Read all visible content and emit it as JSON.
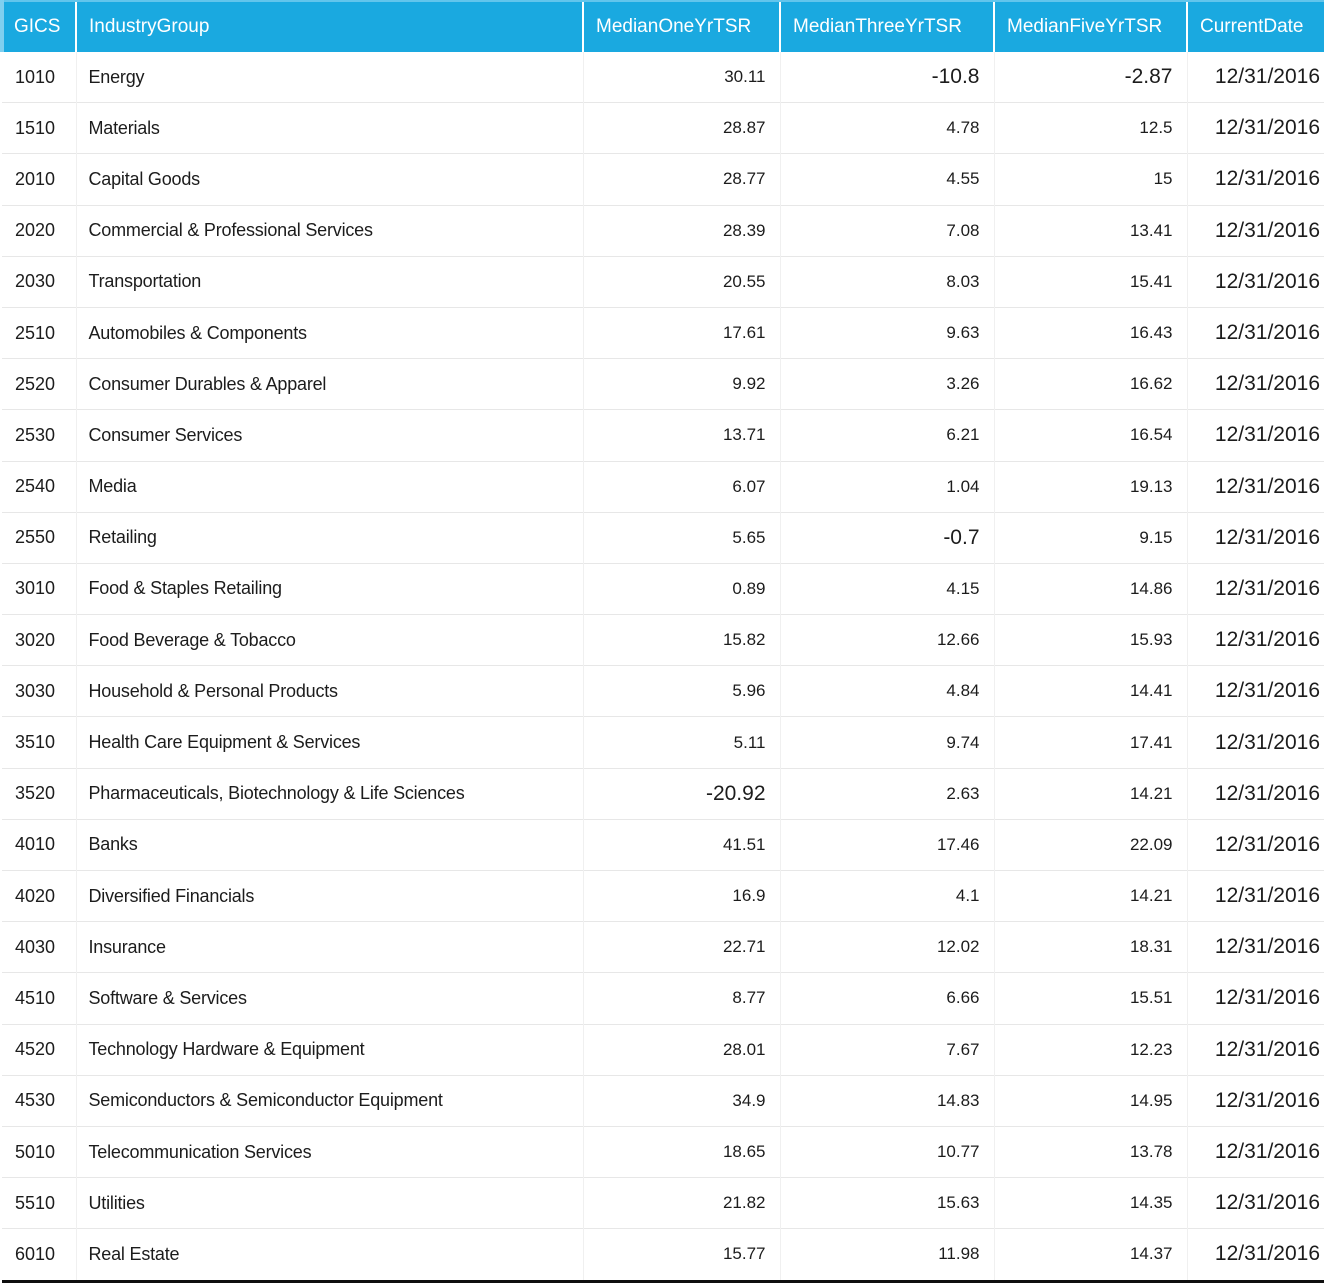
{
  "chart_data": {
    "type": "table",
    "columns": [
      {
        "key": "gics",
        "label": "GICS"
      },
      {
        "key": "industry",
        "label": "IndustryGroup"
      },
      {
        "key": "one_yr",
        "label": "MedianOneYrTSR"
      },
      {
        "key": "three_yr",
        "label": "MedianThreeYrTSR"
      },
      {
        "key": "five_yr",
        "label": "MedianFiveYrTSR"
      },
      {
        "key": "date",
        "label": "CurrentDate"
      }
    ],
    "rows": [
      {
        "gics": "1010",
        "industry": "Energy",
        "one_yr": "30.11",
        "three_yr": "-10.8",
        "five_yr": "-2.87",
        "date": "12/31/2016"
      },
      {
        "gics": "1510",
        "industry": "Materials",
        "one_yr": "28.87",
        "three_yr": "4.78",
        "five_yr": "12.5",
        "date": "12/31/2016"
      },
      {
        "gics": "2010",
        "industry": "Capital Goods",
        "one_yr": "28.77",
        "three_yr": "4.55",
        "five_yr": "15",
        "date": "12/31/2016"
      },
      {
        "gics": "2020",
        "industry": "Commercial & Professional Services",
        "one_yr": "28.39",
        "three_yr": "7.08",
        "five_yr": "13.41",
        "date": "12/31/2016"
      },
      {
        "gics": "2030",
        "industry": "Transportation",
        "one_yr": "20.55",
        "three_yr": "8.03",
        "five_yr": "15.41",
        "date": "12/31/2016"
      },
      {
        "gics": "2510",
        "industry": "Automobiles & Components",
        "one_yr": "17.61",
        "three_yr": "9.63",
        "five_yr": "16.43",
        "date": "12/31/2016"
      },
      {
        "gics": "2520",
        "industry": "Consumer Durables & Apparel",
        "one_yr": "9.92",
        "three_yr": "3.26",
        "five_yr": "16.62",
        "date": "12/31/2016"
      },
      {
        "gics": "2530",
        "industry": "Consumer Services",
        "one_yr": "13.71",
        "three_yr": "6.21",
        "five_yr": "16.54",
        "date": "12/31/2016"
      },
      {
        "gics": "2540",
        "industry": "Media",
        "one_yr": "6.07",
        "three_yr": "1.04",
        "five_yr": "19.13",
        "date": "12/31/2016"
      },
      {
        "gics": "2550",
        "industry": "Retailing",
        "one_yr": "5.65",
        "three_yr": "-0.7",
        "five_yr": "9.15",
        "date": "12/31/2016"
      },
      {
        "gics": "3010",
        "industry": "Food & Staples Retailing",
        "one_yr": "0.89",
        "three_yr": "4.15",
        "five_yr": "14.86",
        "date": "12/31/2016"
      },
      {
        "gics": "3020",
        "industry": "Food Beverage & Tobacco",
        "one_yr": "15.82",
        "three_yr": "12.66",
        "five_yr": "15.93",
        "date": "12/31/2016"
      },
      {
        "gics": "3030",
        "industry": "Household & Personal Products",
        "one_yr": "5.96",
        "three_yr": "4.84",
        "five_yr": "14.41",
        "date": "12/31/2016"
      },
      {
        "gics": "3510",
        "industry": "Health Care Equipment & Services",
        "one_yr": "5.11",
        "three_yr": "9.74",
        "five_yr": "17.41",
        "date": "12/31/2016"
      },
      {
        "gics": "3520",
        "industry": "Pharmaceuticals, Biotechnology & Life Sciences",
        "one_yr": "-20.92",
        "three_yr": "2.63",
        "five_yr": "14.21",
        "date": "12/31/2016"
      },
      {
        "gics": "4010",
        "industry": "Banks",
        "one_yr": "41.51",
        "three_yr": "17.46",
        "five_yr": "22.09",
        "date": "12/31/2016"
      },
      {
        "gics": "4020",
        "industry": "Diversified Financials",
        "one_yr": "16.9",
        "three_yr": "4.1",
        "five_yr": "14.21",
        "date": "12/31/2016"
      },
      {
        "gics": "4030",
        "industry": "Insurance",
        "one_yr": "22.71",
        "three_yr": "12.02",
        "five_yr": "18.31",
        "date": "12/31/2016"
      },
      {
        "gics": "4510",
        "industry": "Software & Services",
        "one_yr": "8.77",
        "three_yr": "6.66",
        "five_yr": "15.51",
        "date": "12/31/2016"
      },
      {
        "gics": "4520",
        "industry": "Technology Hardware & Equipment",
        "one_yr": "28.01",
        "three_yr": "7.67",
        "five_yr": "12.23",
        "date": "12/31/2016"
      },
      {
        "gics": "4530",
        "industry": "Semiconductors & Semiconductor Equipment",
        "one_yr": "34.9",
        "three_yr": "14.83",
        "five_yr": "14.95",
        "date": "12/31/2016"
      },
      {
        "gics": "5010",
        "industry": "Telecommunication Services",
        "one_yr": "18.65",
        "three_yr": "10.77",
        "five_yr": "13.78",
        "date": "12/31/2016"
      },
      {
        "gics": "5510",
        "industry": "Utilities",
        "one_yr": "21.82",
        "three_yr": "15.63",
        "five_yr": "14.35",
        "date": "12/31/2016"
      },
      {
        "gics": "6010",
        "industry": "Real Estate",
        "one_yr": "15.77",
        "three_yr": "11.98",
        "five_yr": "14.37",
        "date": "12/31/2016"
      }
    ]
  },
  "colors": {
    "header_bg": "#1aa9e0",
    "header_text": "#ffffff",
    "header_left_accent": "#7fcfef",
    "body_text": "#1c1c1c",
    "grid_line": "#e7e7e7",
    "outer_border": "#141414"
  }
}
